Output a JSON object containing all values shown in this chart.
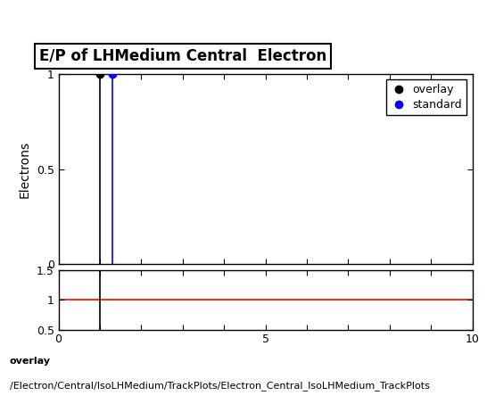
{
  "title": "E/P of LHMedium Central  Electron",
  "ylabel_main": "Electrons",
  "xlim": [
    0,
    10
  ],
  "ylim_main": [
    0,
    1.0
  ],
  "ylim_ratio": [
    0.5,
    1.5
  ],
  "overlay_x": [
    1.0
  ],
  "overlay_y": [
    1.0
  ],
  "standard_x": [
    1.3
  ],
  "standard_y": [
    1.0
  ],
  "overlay_color": "#000000",
  "standard_color": "#0000ff",
  "ratio_line_color": "#ff0000",
  "ratio_line_y": 1.0,
  "vertical_line_overlay_x": 1.0,
  "vertical_line_standard_x": 1.3,
  "legend_overlay": "overlay",
  "legend_standard": "standard",
  "footer_line1": "overlay",
  "footer_line2": "/Electron/Central/IsoLHMedium/TrackPlots/Electron_Central_IsoLHMedium_TrackPlots",
  "title_fontsize": 12,
  "axis_fontsize": 10,
  "tick_fontsize": 9,
  "footer_fontsize": 8,
  "main_yticks": [
    0,
    0.5,
    1.0
  ],
  "ratio_yticks": [
    0.5,
    1.0,
    1.5
  ],
  "xtick_labels": [
    "0",
    "",
    "",
    "",
    "",
    "5",
    "",
    "",
    "",
    "",
    "10"
  ]
}
